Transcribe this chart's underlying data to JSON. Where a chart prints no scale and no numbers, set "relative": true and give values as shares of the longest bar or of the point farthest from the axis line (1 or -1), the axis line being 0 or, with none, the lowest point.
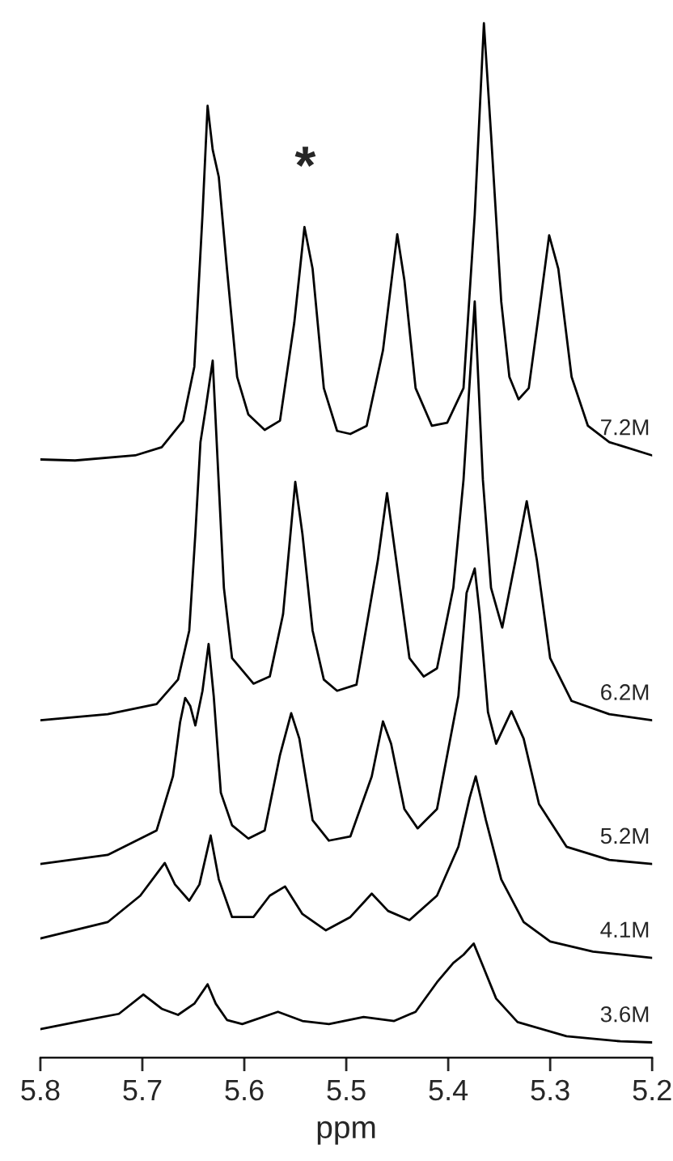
{
  "chart_data": {
    "type": "line",
    "relative": true,
    "xlabel": "ppm",
    "xlim": [
      5.8,
      5.2
    ],
    "xticks": [
      5.8,
      5.7,
      5.6,
      5.5,
      5.4,
      5.3,
      5.2
    ],
    "grid": false,
    "legend": false,
    "marker": "none",
    "line_style": "solid",
    "annotations": [
      "*"
    ],
    "series": [
      {
        "name": "7.2M",
        "color": "#000000",
        "x": [
          5.8,
          5.766,
          5.707,
          5.681,
          5.66,
          5.649,
          5.641,
          5.636,
          5.631,
          5.625,
          5.617,
          5.607,
          5.596,
          5.58,
          5.565,
          5.551,
          5.541,
          5.533,
          5.522,
          5.509,
          5.496,
          5.48,
          5.464,
          5.45,
          5.443,
          5.432,
          5.416,
          5.401,
          5.385,
          5.374,
          5.365,
          5.358,
          5.348,
          5.34,
          5.331,
          5.321,
          5.311,
          5.301,
          5.292,
          5.279,
          5.263,
          5.242,
          5.2
        ],
        "values": [
          0.572,
          0.571,
          0.576,
          0.584,
          0.61,
          0.663,
          0.812,
          0.919,
          0.876,
          0.849,
          0.759,
          0.653,
          0.616,
          0.601,
          0.61,
          0.706,
          0.8,
          0.759,
          0.642,
          0.6,
          0.597,
          0.605,
          0.679,
          0.793,
          0.748,
          0.642,
          0.605,
          0.608,
          0.642,
          0.812,
          1.0,
          0.891,
          0.727,
          0.653,
          0.631,
          0.642,
          0.716,
          0.792,
          0.759,
          0.653,
          0.605,
          0.589,
          0.576
        ]
      },
      {
        "name": "6.2M",
        "color": "#000000",
        "x": [
          5.8,
          5.734,
          5.686,
          5.665,
          5.654,
          5.648,
          5.643,
          5.638,
          5.631,
          5.625,
          5.62,
          5.612,
          5.591,
          5.575,
          5.562,
          5.55,
          5.543,
          5.533,
          5.522,
          5.509,
          5.49,
          5.469,
          5.46,
          5.451,
          5.438,
          5.424,
          5.411,
          5.395,
          5.385,
          5.374,
          5.366,
          5.358,
          5.347,
          5.334,
          5.323,
          5.313,
          5.3,
          5.279,
          5.242,
          5.2
        ],
        "values": [
          0.316,
          0.322,
          0.332,
          0.356,
          0.404,
          0.499,
          0.589,
          0.621,
          0.669,
          0.547,
          0.446,
          0.377,
          0.352,
          0.359,
          0.42,
          0.55,
          0.499,
          0.404,
          0.356,
          0.345,
          0.351,
          0.473,
          0.539,
          0.473,
          0.377,
          0.359,
          0.367,
          0.446,
          0.552,
          0.727,
          0.552,
          0.446,
          0.407,
          0.473,
          0.531,
          0.473,
          0.377,
          0.335,
          0.322,
          0.316
        ]
      },
      {
        "name": "5.2M",
        "color": "#000000",
        "x": [
          5.8,
          5.734,
          5.686,
          5.67,
          5.663,
          5.658,
          5.653,
          5.648,
          5.641,
          5.635,
          5.63,
          5.623,
          5.612,
          5.596,
          5.58,
          5.565,
          5.554,
          5.546,
          5.533,
          5.517,
          5.496,
          5.475,
          5.464,
          5.456,
          5.443,
          5.43,
          5.411,
          5.39,
          5.382,
          5.374,
          5.369,
          5.361,
          5.353,
          5.338,
          5.326,
          5.311,
          5.284,
          5.242,
          5.2
        ],
        "values": [
          0.175,
          0.184,
          0.208,
          0.261,
          0.314,
          0.338,
          0.33,
          0.311,
          0.345,
          0.391,
          0.34,
          0.245,
          0.213,
          0.2,
          0.208,
          0.282,
          0.323,
          0.298,
          0.218,
          0.198,
          0.202,
          0.261,
          0.315,
          0.293,
          0.229,
          0.21,
          0.229,
          0.34,
          0.441,
          0.465,
          0.42,
          0.324,
          0.293,
          0.325,
          0.298,
          0.234,
          0.192,
          0.179,
          0.175
        ]
      },
      {
        "name": "4.1M",
        "color": "#000000",
        "x": [
          5.8,
          5.734,
          5.702,
          5.678,
          5.668,
          5.654,
          5.644,
          5.633,
          5.625,
          5.612,
          5.591,
          5.575,
          5.56,
          5.543,
          5.52,
          5.496,
          5.475,
          5.459,
          5.438,
          5.411,
          5.39,
          5.379,
          5.373,
          5.363,
          5.348,
          5.326,
          5.3,
          5.258,
          5.2
        ],
        "values": [
          0.102,
          0.118,
          0.144,
          0.176,
          0.155,
          0.139,
          0.155,
          0.203,
          0.16,
          0.123,
          0.123,
          0.144,
          0.153,
          0.126,
          0.11,
          0.123,
          0.146,
          0.129,
          0.12,
          0.144,
          0.192,
          0.24,
          0.261,
          0.218,
          0.16,
          0.118,
          0.099,
          0.089,
          0.083
        ]
      },
      {
        "name": "3.6M",
        "color": "#000000",
        "x": [
          5.8,
          5.76,
          5.723,
          5.699,
          5.681,
          5.665,
          5.649,
          5.636,
          5.628,
          5.617,
          5.602,
          5.567,
          5.543,
          5.517,
          5.483,
          5.453,
          5.432,
          5.411,
          5.395,
          5.385,
          5.375,
          5.366,
          5.353,
          5.332,
          5.284,
          5.231,
          5.2
        ],
        "values": [
          0.013,
          0.021,
          0.028,
          0.047,
          0.033,
          0.027,
          0.038,
          0.057,
          0.038,
          0.022,
          0.018,
          0.03,
          0.021,
          0.018,
          0.025,
          0.021,
          0.03,
          0.059,
          0.078,
          0.086,
          0.097,
          0.075,
          0.043,
          0.02,
          0.006,
          0.001,
          0.0
        ]
      }
    ]
  }
}
